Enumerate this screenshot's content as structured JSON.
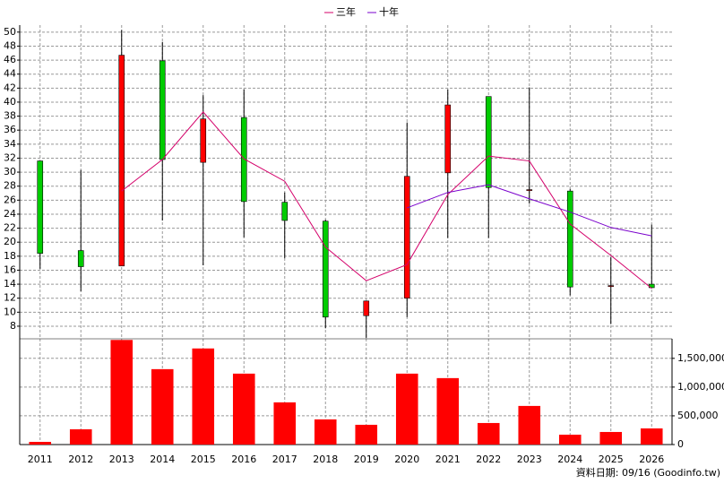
{
  "chart_data": {
    "type": "candlestick",
    "categories": [
      "2011",
      "2012",
      "2013",
      "2014",
      "2015",
      "2016",
      "2017",
      "2018",
      "2019",
      "2020",
      "2021",
      "2022",
      "2023",
      "2024",
      "2025",
      "2026"
    ],
    "open": [
      31.6,
      18.8,
      16.6,
      45.9,
      31.4,
      37.8,
      25.7,
      23.0,
      9.5,
      12.0,
      29.9,
      40.8,
      27.5,
      27.3,
      13.8,
      14.0
    ],
    "high": [
      31.6,
      30.3,
      50.3,
      48.6,
      41.0,
      41.8,
      27.1,
      23.2,
      11.6,
      37.1,
      41.8,
      40.8,
      42.1,
      27.6,
      17.9,
      22.5
    ],
    "low": [
      16.2,
      13.0,
      16.6,
      23.1,
      16.7,
      20.7,
      17.7,
      7.7,
      6.3,
      9.3,
      20.6,
      20.6,
      25.5,
      12.4,
      8.3,
      13.4
    ],
    "close": [
      18.4,
      16.5,
      46.7,
      31.8,
      37.6,
      25.8,
      23.1,
      9.3,
      11.6,
      29.4,
      39.6,
      27.8,
      27.5,
      13.6,
      13.8,
      13.5
    ],
    "up_color": "#ff0000",
    "down_color": "#00cc00",
    "series": [
      {
        "name": "三年",
        "color": "#d4006a",
        "values": [
          null,
          null,
          27.3,
          31.8,
          38.6,
          31.9,
          28.7,
          19.3,
          14.5,
          16.8,
          26.8,
          32.3,
          31.6,
          22.6,
          18.1,
          13.4
        ]
      },
      {
        "name": "十年",
        "color": "#7a00cc",
        "values": [
          null,
          null,
          null,
          null,
          null,
          null,
          null,
          null,
          null,
          24.9,
          27.1,
          28.2,
          26.2,
          24.3,
          22.1,
          20.9
        ]
      }
    ],
    "ylim": [
      6.2,
      51
    ],
    "yticks": [
      8,
      10,
      12,
      14,
      16,
      18,
      20,
      22,
      24,
      26,
      28,
      30,
      32,
      34,
      36,
      38,
      40,
      42,
      44,
      46,
      48,
      50
    ],
    "volume": {
      "color": "#ff0000",
      "values": [
        47000,
        266000,
        1820000,
        1312000,
        1672000,
        1234000,
        734000,
        438000,
        344000,
        1234000,
        1156000,
        375000,
        672000,
        172000,
        219000,
        281000
      ],
      "ylim": [
        0,
        1840000
      ],
      "yticks": [
        0,
        {
          "value": 500000,
          "label": "500,000"
        },
        {
          "value": 1000000,
          "label": "1,000,000"
        },
        {
          "value": 1500000,
          "label": "1,500,000"
        }
      ]
    },
    "grid": true,
    "footnote": "資料日期: 09/16 (Goodinfo.tw)"
  }
}
